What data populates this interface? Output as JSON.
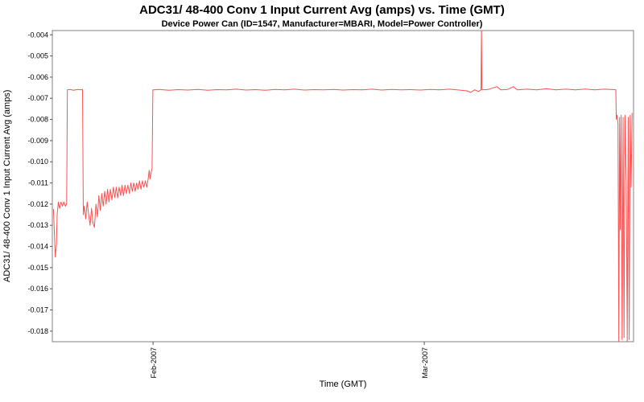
{
  "chart_data": {
    "type": "line",
    "title": "ADC31/ 48-400 Conv 1 Input Current  Avg (amps) vs. Time (GMT)",
    "subtitle": "Device Power Can (ID=1547, Manufacturer=MBARI, Model=Power Controller)",
    "xlabel": "Time (GMT)",
    "ylabel": "ADC31/ 48-400 Conv 1 Input Current  Avg (amps)",
    "colors": {
      "line": "#ff5050",
      "plot_border": "#808080",
      "background": "#ffffff"
    },
    "legend": "none",
    "grid": "off",
    "y_axis": {
      "min": -0.0185,
      "max": -0.0038,
      "tick_labels": [
        "-0.004",
        "-0.005",
        "-0.006",
        "-0.007",
        "-0.008",
        "-0.009",
        "-0.010",
        "-0.011",
        "-0.012",
        "-0.013",
        "-0.014",
        "-0.015",
        "-0.016",
        "-0.017",
        "-0.018"
      ]
    },
    "x_axis": {
      "total_days": 60,
      "ticks": [
        {
          "label": "Feb-2007",
          "day": 10.4
        },
        {
          "label": "Mar-2007",
          "day": 38.4
        }
      ]
    },
    "points": [
      [
        0.12,
        -0.01225
      ],
      [
        0.2,
        -0.0132
      ],
      [
        0.3,
        -0.0145
      ],
      [
        0.42,
        -0.0139
      ],
      [
        0.5,
        -0.0125
      ],
      [
        0.62,
        -0.0119
      ],
      [
        0.75,
        -0.0122
      ],
      [
        0.9,
        -0.0119
      ],
      [
        1.05,
        -0.0121
      ],
      [
        1.2,
        -0.0119
      ],
      [
        1.35,
        -0.0121
      ],
      [
        1.48,
        -0.012
      ],
      [
        1.55,
        -0.0066
      ],
      [
        1.8,
        -0.00658
      ],
      [
        2.2,
        -0.00662
      ],
      [
        2.6,
        -0.00658
      ],
      [
        3.0,
        -0.0066
      ],
      [
        3.12,
        -0.00658
      ],
      [
        3.2,
        -0.0125
      ],
      [
        3.3,
        -0.0121
      ],
      [
        3.45,
        -0.0127
      ],
      [
        3.6,
        -0.0119
      ],
      [
        3.75,
        -0.0125
      ],
      [
        3.9,
        -0.013
      ],
      [
        4.05,
        -0.0122
      ],
      [
        4.2,
        -0.0129
      ],
      [
        4.35,
        -0.0131
      ],
      [
        4.5,
        -0.012
      ],
      [
        4.65,
        -0.0126
      ],
      [
        4.8,
        -0.0116
      ],
      [
        4.95,
        -0.0123
      ],
      [
        5.1,
        -0.0115
      ],
      [
        5.25,
        -0.0121
      ],
      [
        5.4,
        -0.0114
      ],
      [
        5.55,
        -0.012
      ],
      [
        5.7,
        -0.0113
      ],
      [
        5.85,
        -0.0119
      ],
      [
        6.0,
        -0.0113
      ],
      [
        6.15,
        -0.0118
      ],
      [
        6.3,
        -0.0112
      ],
      [
        6.45,
        -0.0117
      ],
      [
        6.6,
        -0.0112
      ],
      [
        6.75,
        -0.0117
      ],
      [
        6.9,
        -0.0112
      ],
      [
        7.05,
        -0.0116
      ],
      [
        7.2,
        -0.0111
      ],
      [
        7.35,
        -0.0116
      ],
      [
        7.5,
        -0.0111
      ],
      [
        7.65,
        -0.0115
      ],
      [
        7.8,
        -0.0111
      ],
      [
        7.95,
        -0.0115
      ],
      [
        8.1,
        -0.011
      ],
      [
        8.25,
        -0.0114
      ],
      [
        8.4,
        -0.011
      ],
      [
        8.55,
        -0.0114
      ],
      [
        8.7,
        -0.011
      ],
      [
        8.85,
        -0.0113
      ],
      [
        9.0,
        -0.0109
      ],
      [
        9.15,
        -0.0113
      ],
      [
        9.3,
        -0.0109
      ],
      [
        9.45,
        -0.0112
      ],
      [
        9.6,
        -0.0109
      ],
      [
        9.75,
        -0.0112
      ],
      [
        9.9,
        -0.0108
      ],
      [
        10.0,
        -0.0104
      ],
      [
        10.1,
        -0.0108
      ],
      [
        10.2,
        -0.0105
      ],
      [
        10.3,
        -0.0103
      ],
      [
        10.38,
        -0.0066
      ],
      [
        10.45,
        -0.0066
      ],
      [
        11,
        -0.00658
      ],
      [
        12,
        -0.00662
      ],
      [
        13,
        -0.00659
      ],
      [
        14,
        -0.00661
      ],
      [
        15,
        -0.00658
      ],
      [
        16,
        -0.00662
      ],
      [
        17,
        -0.00659
      ],
      [
        18,
        -0.0066
      ],
      [
        19,
        -0.00657
      ],
      [
        20,
        -0.00661
      ],
      [
        21,
        -0.00659
      ],
      [
        22,
        -0.00662
      ],
      [
        23,
        -0.00658
      ],
      [
        24,
        -0.0066
      ],
      [
        25,
        -0.00657
      ],
      [
        26,
        -0.00661
      ],
      [
        27,
        -0.00659
      ],
      [
        28,
        -0.0066
      ],
      [
        29,
        -0.00658
      ],
      [
        30,
        -0.00661
      ],
      [
        31,
        -0.00659
      ],
      [
        32,
        -0.0066
      ],
      [
        33,
        -0.00657
      ],
      [
        34,
        -0.00661
      ],
      [
        35,
        -0.00658
      ],
      [
        36,
        -0.0066
      ],
      [
        37,
        -0.00659
      ],
      [
        38,
        -0.00661
      ],
      [
        39,
        -0.00658
      ],
      [
        40,
        -0.0066
      ],
      [
        41,
        -0.00657
      ],
      [
        42,
        -0.00661
      ],
      [
        42.8,
        -0.00665
      ],
      [
        43.2,
        -0.00672
      ],
      [
        43.6,
        -0.0066
      ],
      [
        44.0,
        -0.00668
      ],
      [
        44.25,
        -0.0066
      ],
      [
        44.3,
        -0.0036
      ],
      [
        44.35,
        -0.0066
      ],
      [
        45,
        -0.00658
      ],
      [
        45.9,
        -0.00645
      ],
      [
        46.3,
        -0.0066
      ],
      [
        47,
        -0.00658
      ],
      [
        47.6,
        -0.00645
      ],
      [
        48,
        -0.0066
      ],
      [
        49,
        -0.00657
      ],
      [
        50,
        -0.0066
      ],
      [
        51,
        -0.00655
      ],
      [
        52,
        -0.0066
      ],
      [
        53,
        -0.00657
      ],
      [
        54,
        -0.0066
      ],
      [
        55,
        -0.00656
      ],
      [
        56,
        -0.0066
      ],
      [
        57,
        -0.00657
      ],
      [
        58.0,
        -0.00659
      ],
      [
        58.17,
        -0.0066
      ],
      [
        58.22,
        -0.008
      ],
      [
        58.3,
        -0.0078
      ],
      [
        58.4,
        -0.0082
      ],
      [
        58.48,
        -0.0185
      ],
      [
        58.56,
        -0.0079
      ],
      [
        58.64,
        -0.0132
      ],
      [
        58.72,
        -0.0078
      ],
      [
        58.82,
        -0.0184
      ],
      [
        58.92,
        -0.0079
      ],
      [
        59.02,
        -0.0183
      ],
      [
        59.12,
        -0.0078
      ],
      [
        59.25,
        -0.011
      ],
      [
        59.35,
        -0.0185
      ],
      [
        59.45,
        -0.0079
      ],
      [
        59.55,
        -0.0184
      ],
      [
        59.65,
        -0.0078
      ],
      [
        59.75,
        -0.0112
      ],
      [
        59.85,
        -0.0077
      ]
    ]
  }
}
